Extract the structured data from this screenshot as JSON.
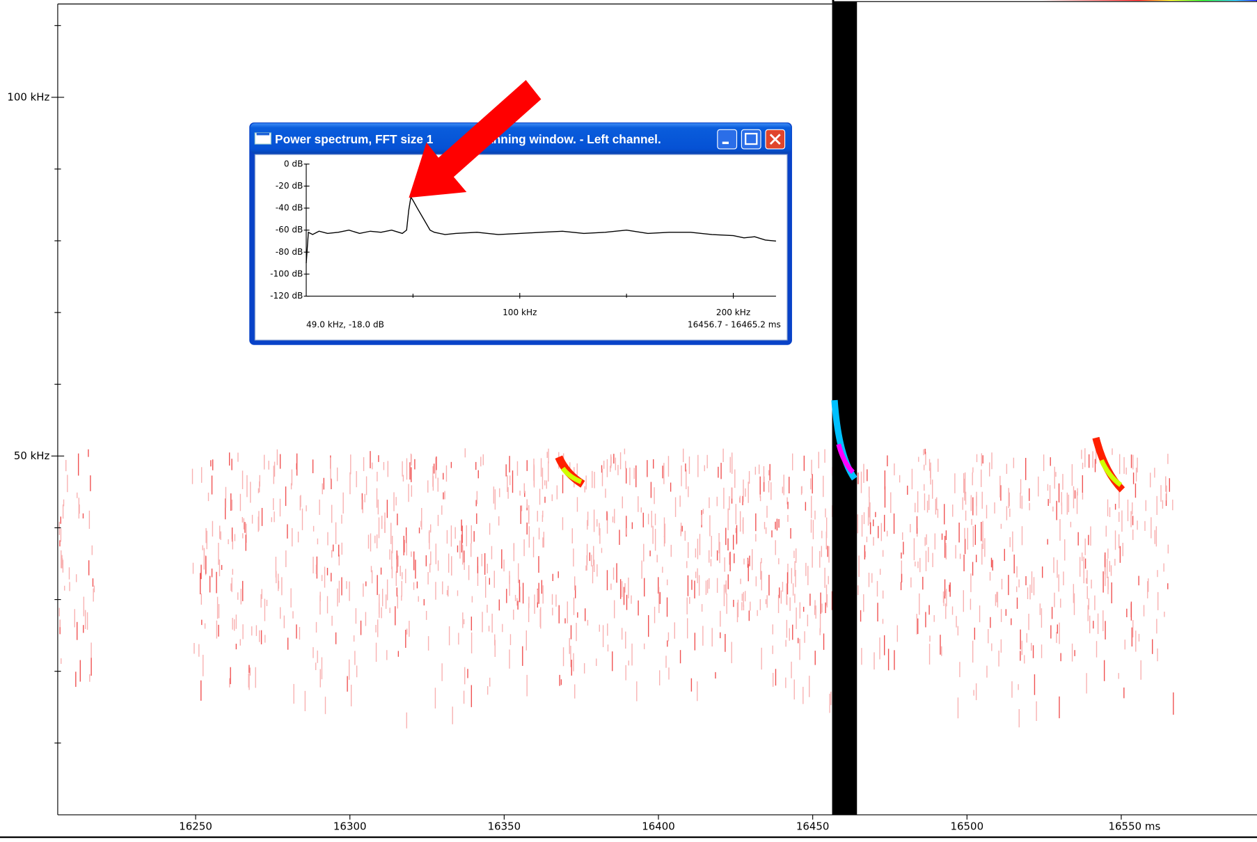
{
  "spectrogram": {
    "xlim": [
      16205.3,
      16594
    ],
    "xticks": [
      16250,
      16300,
      16350,
      16400,
      16450,
      16500,
      {
        "value": 16550,
        "label": "16550 ms"
      }
    ],
    "ylim": [
      0,
      113
    ],
    "yticks": [
      {
        "value": 100,
        "label": "100 kHz"
      },
      {
        "value": 50,
        "label": "50 kHz"
      }
    ],
    "yminor": [
      10,
      20,
      30,
      40,
      60,
      70,
      80,
      90,
      110
    ]
  },
  "spectrum_window": {
    "title_parts": [
      "Power spectrum, FFT size 1",
      "anning window. - Left channel."
    ],
    "chart_data": {
      "type": "line",
      "x": [
        0,
        1,
        3,
        6,
        10,
        15,
        20,
        25,
        30,
        35,
        40,
        45,
        47,
        48,
        49,
        50,
        52,
        55,
        58,
        60,
        65,
        70,
        80,
        90,
        100,
        110,
        120,
        130,
        140,
        150,
        160,
        170,
        180,
        190,
        200,
        205,
        210,
        215,
        220
      ],
      "values": [
        -90,
        -62,
        -64,
        -61,
        -63,
        -62,
        -60,
        -63,
        -61,
        -62,
        -60,
        -63,
        -60,
        -42,
        -30,
        -33,
        -40,
        -50,
        -60,
        -62,
        -64,
        -63,
        -62,
        -64,
        -63,
        -62,
        -61,
        -63,
        -62,
        -60,
        -63,
        -62,
        -62,
        -64,
        -65,
        -67,
        -66,
        -69,
        -70
      ],
      "color": "#000000",
      "xlim": [
        0,
        220
      ],
      "xticks": [
        {
          "value": 100,
          "label": "100 kHz"
        },
        {
          "value": 200,
          "label": "200 kHz"
        }
      ],
      "xminor": [
        50,
        150
      ],
      "ylim": [
        -120,
        0
      ],
      "yticks": [
        {
          "value": 0,
          "label": "0 dB"
        },
        {
          "value": -20,
          "label": "-20 dB"
        },
        {
          "value": -40,
          "label": "-40 dB"
        },
        {
          "value": -60,
          "label": "-60 dB"
        },
        {
          "value": -80,
          "label": "-80 dB"
        },
        {
          "value": -100,
          "label": "-100 dB"
        },
        {
          "value": -120,
          "label": "-120 dB"
        }
      ]
    },
    "status_left": "49.0 kHz, -18.0 dB",
    "status_right": "16456.7 - 16465.2 ms"
  }
}
